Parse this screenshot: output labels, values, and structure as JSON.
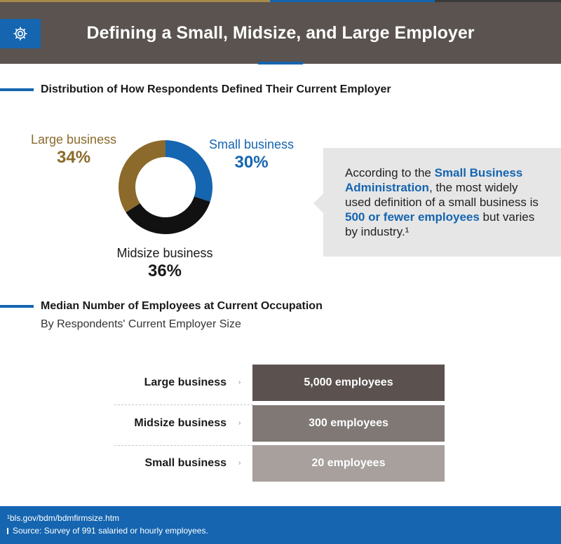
{
  "colors": {
    "stripe": [
      "#a88a4a",
      "#1565b0",
      "#3a3a3a"
    ],
    "header_bg": "#5a534f",
    "accent_blue": "#1565b0",
    "gold": "#8b6a2b",
    "black": "#111111",
    "callout_bg": "#e6e6e6",
    "footer_bg": "#1565b0"
  },
  "header": {
    "title": "Defining a Small, Midsize, and Large Employer",
    "icon": "gear-icon"
  },
  "section1": {
    "title": "Distribution of How Respondents Defined Their Current Employer"
  },
  "callout": {
    "pre": "According to the ",
    "highlight1": "Small Business Administration",
    "mid": ", the most widely used definition of a small business is ",
    "highlight2": "500 or fewer employees",
    "post": " but varies by industry.¹"
  },
  "section2": {
    "title": "Median Number of Employees at Current Occupation",
    "subtitle": "By Respondents' Current Employer Size"
  },
  "chart_data": [
    {
      "type": "pie",
      "title": "Distribution of How Respondents Defined Their Current Employer",
      "categories": [
        "Small business",
        "Midsize business",
        "Large business"
      ],
      "values": [
        30,
        36,
        34
      ],
      "value_labels": [
        "30%",
        "36%",
        "34%"
      ],
      "colors": [
        "#1565b0",
        "#111111",
        "#8b6a2b"
      ],
      "label_colors": [
        "#1565b0",
        "#111111",
        "#8b6a2b"
      ],
      "style": "donut"
    },
    {
      "type": "bar",
      "title": "Median Number of Employees at Current Occupation",
      "subtitle": "By Respondents' Current Employer Size",
      "categories": [
        "Large business",
        "Midsize business",
        "Small business"
      ],
      "values": [
        5000,
        300,
        20
      ],
      "value_labels": [
        "5,000 employees",
        "300 employees",
        "20 employees"
      ],
      "colors": [
        "#5b5250",
        "#7f7875",
        "#a7a09d"
      ]
    }
  ],
  "footer": {
    "note": "¹bls.gov/bdm/bdmfirmsize.htm",
    "source": "Source: Survey of 991 salaried or hourly employees."
  }
}
